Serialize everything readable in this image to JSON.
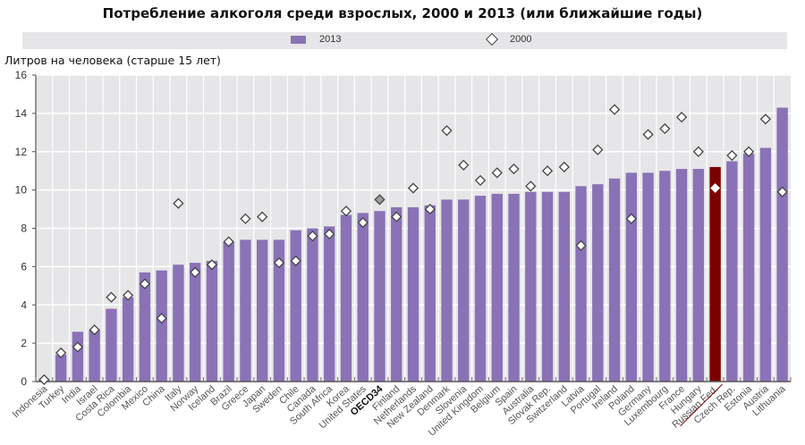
{
  "chart_data": {
    "type": "bar",
    "title": "Потребление алкоголя среди взрослых, 2000 и 2013 (или ближайшие годы)",
    "ylabel": "Литров на человека (старше 15 лет)",
    "xlabel": "",
    "ylim": [
      0,
      16
    ],
    "yticks": [
      "0",
      "2",
      "4",
      "6",
      "8",
      "10",
      "12",
      "14",
      "16"
    ],
    "grid": true,
    "legend_position": "top",
    "colors": {
      "bar": "#8a72b6",
      "highlight": "#7b0000",
      "plot_bg": "#e6e6e8",
      "oecd_marker": "#a0a0a0"
    },
    "highlight_category": "Russian Fed.",
    "bold_category": "OECD34",
    "categories": [
      "Indonesia",
      "Turkey",
      "India",
      "Israel",
      "Costa Rica",
      "Colombia",
      "Mexico",
      "China",
      "Italy",
      "Norway",
      "Iceland",
      "Brazil",
      "Greece",
      "Japan",
      "Sweden",
      "Chile",
      "Canada",
      "South Africa",
      "Korea",
      "United States",
      "OECD34",
      "Finland",
      "Netherlands",
      "New Zealand",
      "Denmark",
      "Slovenia",
      "United Kingdom",
      "Belgium",
      "Spain",
      "Australia",
      "Slovak Rep.",
      "Switzerland",
      "Latvia",
      "Portugal",
      "Ireland",
      "Poland",
      "Germany",
      "Luxembourg",
      "France",
      "Hungary",
      "Russian Fed.",
      "Czech Rep.",
      "Estonia",
      "Austria",
      "Lithuania"
    ],
    "series": [
      {
        "name": "2013",
        "marker": "bar",
        "values": [
          0.1,
          1.4,
          2.6,
          2.7,
          3.8,
          4.4,
          5.7,
          5.8,
          6.1,
          6.2,
          6.3,
          7.3,
          7.4,
          7.4,
          7.4,
          7.9,
          8.0,
          8.1,
          8.7,
          8.8,
          8.9,
          9.1,
          9.1,
          9.2,
          9.5,
          9.5,
          9.7,
          9.8,
          9.8,
          9.9,
          9.9,
          9.9,
          10.2,
          10.3,
          10.6,
          10.9,
          10.9,
          11.0,
          11.1,
          11.1,
          11.2,
          11.5,
          11.9,
          12.2,
          14.3
        ]
      },
      {
        "name": "2000",
        "marker": "diamond",
        "values": [
          0.1,
          1.5,
          1.8,
          2.7,
          4.4,
          4.5,
          5.1,
          3.3,
          9.3,
          5.7,
          6.1,
          7.3,
          8.5,
          8.6,
          6.2,
          6.3,
          7.6,
          7.7,
          8.9,
          8.3,
          9.5,
          8.6,
          10.1,
          9.0,
          13.1,
          11.3,
          10.5,
          10.9,
          11.1,
          10.2,
          11.0,
          11.2,
          7.1,
          12.1,
          14.2,
          8.5,
          12.9,
          13.2,
          13.8,
          12.0,
          10.1,
          11.8,
          12.0,
          13.7,
          9.9
        ]
      }
    ]
  },
  "legend": {
    "items": [
      {
        "label": "2013"
      },
      {
        "label": "2000"
      }
    ]
  }
}
